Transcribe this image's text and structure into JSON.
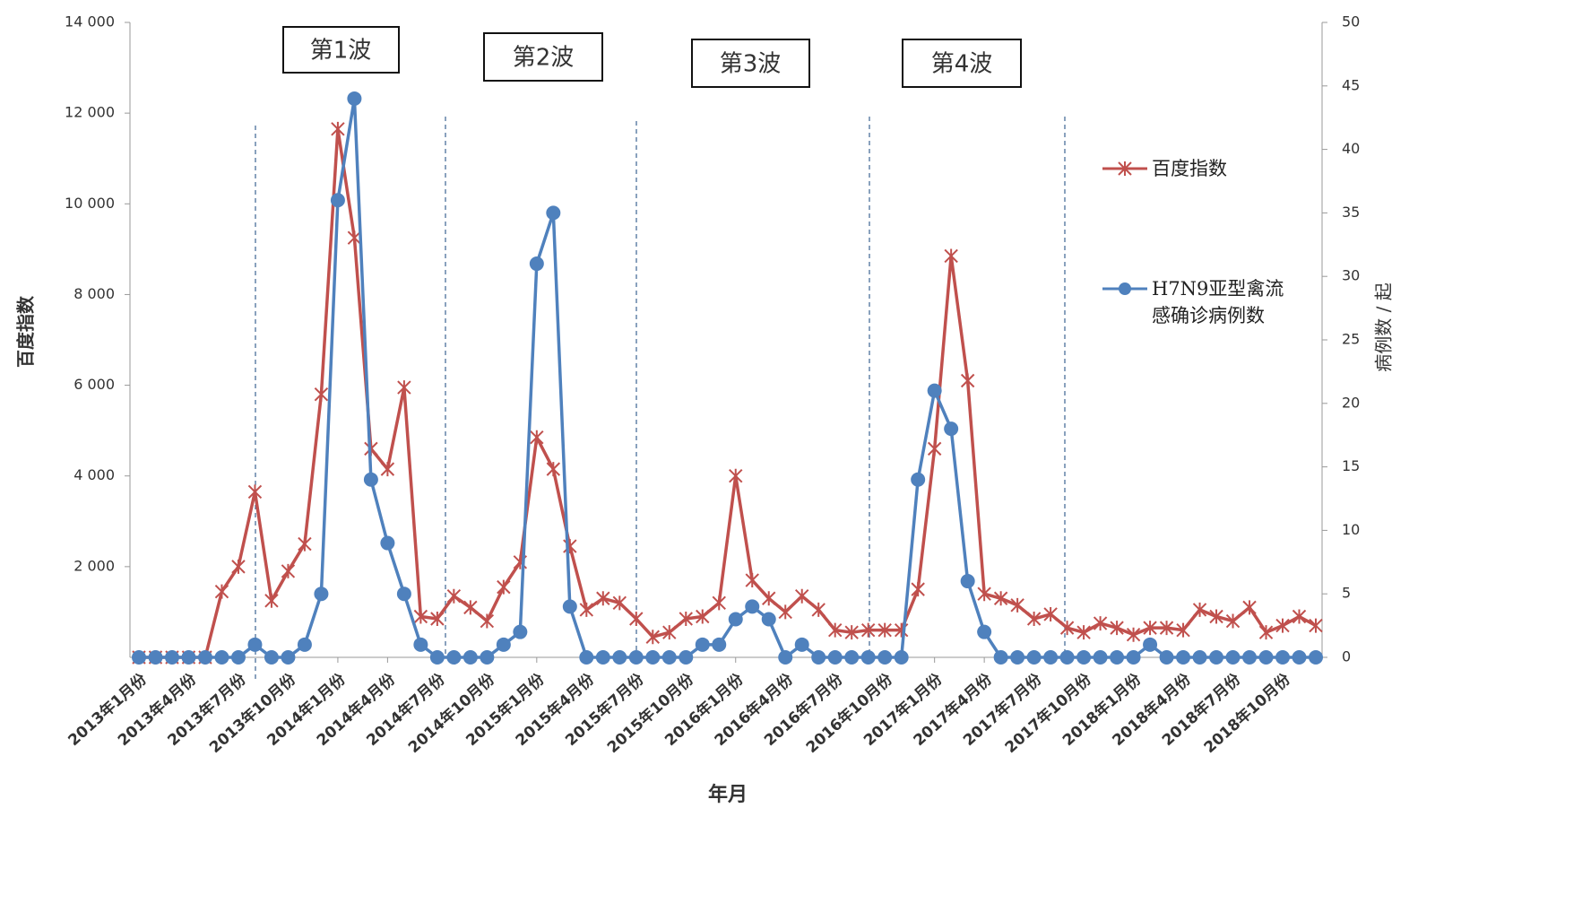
{
  "chart_data": {
    "type": "line",
    "x_label": "年月",
    "y_label": "百度指数",
    "y2_label": "病例数 / 起",
    "annotations": [
      "第1波",
      "第2波",
      "第3波",
      "第4波"
    ],
    "categories": [
      "2013年1月份",
      null,
      null,
      "2013年4月份",
      null,
      null,
      "2013年7月份",
      null,
      null,
      "2013年10月份",
      null,
      null,
      "2014年1月份",
      null,
      null,
      "2014年4月份",
      null,
      null,
      "2014年7月份",
      null,
      null,
      "2014年10月份",
      null,
      null,
      "2015年1月份",
      null,
      null,
      "2015年4月份",
      null,
      null,
      "2015年7月份",
      null,
      null,
      "2015年10月份",
      null,
      null,
      "2016年1月份",
      null,
      null,
      "2016年4月份",
      null,
      null,
      "2016年7月份",
      null,
      null,
      "2016年10月份",
      null,
      null,
      "2017年1月份",
      null,
      null,
      "2017年4月份",
      null,
      null,
      "2017年7月份",
      null,
      null,
      "2017年10月份",
      null,
      null,
      "2018年1月份",
      null,
      null,
      "2018年4月份",
      null,
      null,
      "2018年7月份",
      null,
      null,
      "2018年10月份",
      null,
      null
    ],
    "series": [
      {
        "name": "百度指数",
        "color": "#c0504d",
        "marker": "star",
        "values": [
          0,
          0,
          0,
          0,
          0,
          1450,
          2000,
          3650,
          1250,
          1900,
          2500,
          5800,
          11650,
          9250,
          4600,
          4150,
          5950,
          900,
          850,
          1350,
          1100,
          800,
          1550,
          2100,
          4850,
          4150,
          2450,
          1050,
          1300,
          1200,
          850,
          450,
          550,
          850,
          900,
          1200,
          4000,
          1700,
          1300,
          1000,
          1350,
          1050,
          600,
          550,
          600,
          600,
          600,
          1500,
          4600,
          8850,
          6100,
          1400,
          1300,
          1150,
          850,
          950,
          650,
          550,
          750,
          650,
          500,
          650,
          650,
          600,
          1050,
          900,
          800,
          1100,
          550,
          700,
          900,
          700
        ]
      },
      {
        "name": "H7N9亚型禽流感确诊病例数",
        "color": "#4f81bd",
        "marker": "circle",
        "axis": "y2",
        "values": [
          0,
          0,
          0,
          0,
          0,
          0,
          0,
          1,
          0,
          0,
          1,
          5,
          36,
          44,
          14,
          9,
          5,
          1,
          0,
          0,
          0,
          0,
          1,
          2,
          31,
          35,
          4,
          0,
          0,
          0,
          0,
          0,
          0,
          0,
          1,
          1,
          3,
          4,
          3,
          0,
          1,
          0,
          0,
          0,
          0,
          0,
          0,
          14,
          21,
          18,
          6,
          2,
          0,
          0,
          0,
          0,
          0,
          0,
          0,
          0,
          0,
          1,
          0,
          0,
          0,
          0,
          0,
          0,
          0,
          0,
          0,
          0
        ]
      }
    ],
    "ylim": [
      0,
      14000
    ],
    "yticks": [
      {
        "value": 2000,
        "label": "2 000"
      },
      {
        "value": 4000,
        "label": "4 000"
      },
      {
        "value": 6000,
        "label": "6 000"
      },
      {
        "value": 8000,
        "label": "8 000"
      },
      {
        "value": 10000,
        "label": "10 000"
      },
      {
        "value": 12000,
        "label": "12 000"
      },
      {
        "value": 14000,
        "label": "14 000"
      }
    ],
    "y2lim": [
      0,
      50
    ],
    "y2ticks": [
      0,
      5,
      10,
      15,
      20,
      25,
      30,
      35,
      40,
      45,
      50
    ],
    "grid": false
  }
}
